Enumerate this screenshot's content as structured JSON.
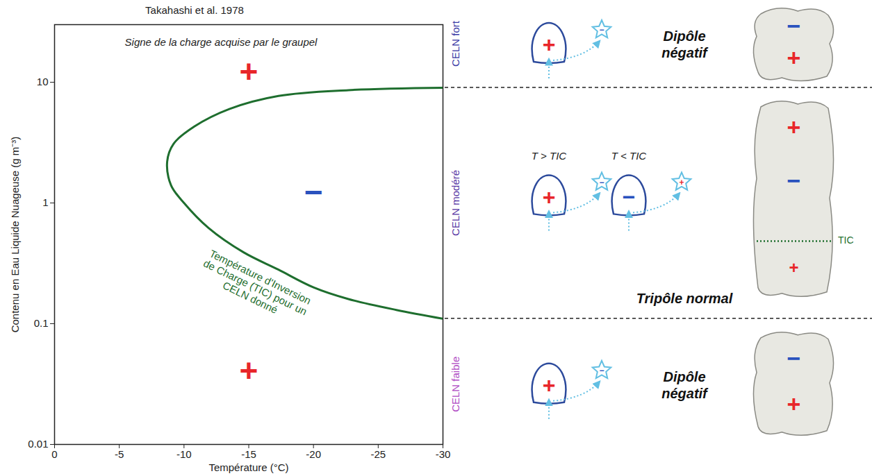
{
  "chart_data": {
    "type": "line",
    "source": "Takahashi et al. 1978",
    "title": "Signe de la charge acquise par le graupel",
    "x_label": "Température (°C)",
    "y_label": "Contenu en Eau Liquide Nuageuse (g m⁻³)",
    "x": [
      -30,
      -22.7,
      -17.3,
      -13.5,
      -10.8,
      -9.2,
      -8.7,
      -9,
      -10,
      -11.9,
      -14.6,
      -17.3,
      -20,
      -22.7,
      -26.4,
      -30
    ],
    "values": [
      9,
      8.6,
      7.7,
      6,
      4.3,
      3.1,
      2.2,
      1.4,
      1,
      0.62,
      0.39,
      0.28,
      0.2,
      0.16,
      0.13,
      0.11
    ],
    "color": "#1e6e2e",
    "xlim": [
      0,
      -30
    ],
    "xticks": [
      0,
      -5,
      -10,
      -15,
      -20,
      -25,
      -30
    ],
    "ylim": [
      0.01,
      30
    ],
    "yticks": [
      0.01,
      0.1,
      1,
      10
    ],
    "log": "y",
    "grid": false,
    "annotations": [
      {
        "text": "+",
        "x": -15,
        "y": 12,
        "color": "#e8262a"
      },
      {
        "text": "−",
        "x": -20,
        "y": 1.2,
        "color": "#2a52be"
      },
      {
        "text": "+",
        "x": -15,
        "y": 0.04,
        "color": "#e8262a"
      }
    ],
    "curve_label": {
      "text": "Température d'Inversion\nde Charge (TIC) pour un\nCELN donné",
      "x": -15.5,
      "y": 0.2
    }
  },
  "diagram": {
    "rows": [
      {
        "label": "CELN fort",
        "color": "#3b3ba6",
        "particles": [
          {
            "charge": "+",
            "crystal_charge": "−"
          }
        ],
        "structure": "Dipôle négatif",
        "cloud_charges": [
          "−",
          "+"
        ]
      },
      {
        "label": "CELN modéré",
        "color": "#5a3aa6",
        "particles": [
          {
            "condition": "T > TIC",
            "charge": "+",
            "crystal_charge": "−"
          },
          {
            "condition": "T < TIC",
            "charge": "−",
            "crystal_charge": "+"
          }
        ],
        "structure": "Tripôle normal",
        "cloud_charges": [
          "+",
          "−",
          "+"
        ],
        "cloud_level": "TIC"
      },
      {
        "label": "CELN faible",
        "color": "#b04cc4",
        "particles": [
          {
            "charge": "+",
            "crystal_charge": "−"
          }
        ],
        "structure": "Dipôle négatif",
        "cloud_charges": [
          "−",
          "+"
        ]
      }
    ]
  }
}
